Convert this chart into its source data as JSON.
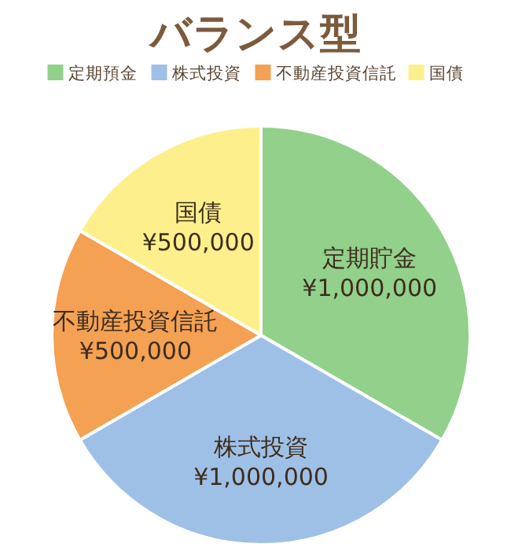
{
  "chart_data": {
    "type": "pie",
    "title": "バランス型",
    "categories": [
      "定期預金",
      "株式投資",
      "不動産投資信託",
      "国債"
    ],
    "values": [
      1000000,
      1000000,
      500000,
      500000
    ],
    "colors": [
      "#92d08c",
      "#9fc0e6",
      "#f4a153",
      "#fdf08c"
    ],
    "value_labels": [
      "¥1,000,000",
      "¥1,000,000",
      "¥500,000",
      "¥500,000"
    ],
    "annotations": [
      "定期貯金",
      "株式投資",
      "不動産投資信託",
      "国債"
    ],
    "legend": "top"
  }
}
